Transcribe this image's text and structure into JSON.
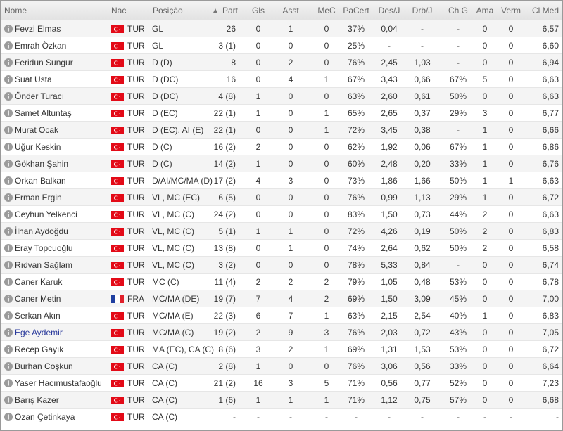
{
  "table": {
    "header": [
      "Nome",
      "Nac",
      "Posição",
      "Part",
      "Gls",
      "Asst",
      "MeC",
      "PaCert",
      "Des/J",
      "Drb/J",
      "Ch G",
      "Ama",
      "Verm",
      "Cl Med"
    ],
    "rows": [
      [
        "Fevzi Elmas",
        "TUR",
        "GL",
        "26",
        "0",
        "1",
        "0",
        "37%",
        "0,04",
        "-",
        "-",
        "0",
        "0",
        "6,57"
      ],
      [
        "Emrah Özkan",
        "TUR",
        "GL",
        "3 (1)",
        "0",
        "0",
        "0",
        "25%",
        "-",
        "-",
        "-",
        "0",
        "0",
        "6,60"
      ],
      [
        "Feridun Sungur",
        "TUR",
        "D (D)",
        "8",
        "0",
        "2",
        "0",
        "76%",
        "2,45",
        "1,03",
        "-",
        "0",
        "0",
        "6,94"
      ],
      [
        "Suat Usta",
        "TUR",
        "D (DC)",
        "16",
        "0",
        "4",
        "1",
        "67%",
        "3,43",
        "0,66",
        "67%",
        "5",
        "0",
        "6,63"
      ],
      [
        "Önder Turacı",
        "TUR",
        "D (DC)",
        "4 (8)",
        "1",
        "0",
        "0",
        "63%",
        "2,60",
        "0,61",
        "50%",
        "0",
        "0",
        "6,63"
      ],
      [
        "Samet Altuntaş",
        "TUR",
        "D (EC)",
        "22 (1)",
        "1",
        "0",
        "1",
        "65%",
        "2,65",
        "0,37",
        "29%",
        "3",
        "0",
        "6,77"
      ],
      [
        "Murat Ocak",
        "TUR",
        "D (EC), AI (E)",
        "22 (1)",
        "0",
        "0",
        "1",
        "72%",
        "3,45",
        "0,38",
        "-",
        "1",
        "0",
        "6,66"
      ],
      [
        "Uğur Keskin",
        "TUR",
        "D (C)",
        "16 (2)",
        "2",
        "0",
        "0",
        "62%",
        "1,92",
        "0,06",
        "67%",
        "1",
        "0",
        "6,86"
      ],
      [
        "Gökhan Şahin",
        "TUR",
        "D (C)",
        "14 (2)",
        "1",
        "0",
        "0",
        "60%",
        "2,48",
        "0,20",
        "33%",
        "1",
        "0",
        "6,76"
      ],
      [
        "Orkan Balkan",
        "TUR",
        "D/AI/MC/MA (D)",
        "17 (2)",
        "4",
        "3",
        "0",
        "73%",
        "1,86",
        "1,66",
        "50%",
        "1",
        "1",
        "6,63"
      ],
      [
        "Erman Ergin",
        "TUR",
        "VL, MC (EC)",
        "6 (5)",
        "0",
        "0",
        "0",
        "76%",
        "0,99",
        "1,13",
        "29%",
        "1",
        "0",
        "6,72"
      ],
      [
        "Ceyhun Yelkenci",
        "TUR",
        "VL, MC (C)",
        "24 (2)",
        "0",
        "0",
        "0",
        "83%",
        "1,50",
        "0,73",
        "44%",
        "2",
        "0",
        "6,63"
      ],
      [
        "İlhan Aydoğdu",
        "TUR",
        "VL, MC (C)",
        "5 (1)",
        "1",
        "1",
        "0",
        "72%",
        "4,26",
        "0,19",
        "50%",
        "2",
        "0",
        "6,83"
      ],
      [
        "Eray Topcuoğlu",
        "TUR",
        "VL, MC (C)",
        "13 (8)",
        "0",
        "1",
        "0",
        "74%",
        "2,64",
        "0,62",
        "50%",
        "2",
        "0",
        "6,58"
      ],
      [
        "Rıdvan Sağlam",
        "TUR",
        "VL, MC (C)",
        "3 (2)",
        "0",
        "0",
        "0",
        "78%",
        "5,33",
        "0,84",
        "-",
        "0",
        "0",
        "6,74"
      ],
      [
        "Caner Karuk",
        "TUR",
        "MC (C)",
        "11 (4)",
        "2",
        "2",
        "2",
        "79%",
        "1,05",
        "0,48",
        "53%",
        "0",
        "0",
        "6,78"
      ],
      [
        "Caner Metin",
        "FRA",
        "MC/MA (DE)",
        "19 (7)",
        "7",
        "4",
        "2",
        "69%",
        "1,50",
        "3,09",
        "45%",
        "0",
        "0",
        "7,00"
      ],
      [
        "Serkan Akın",
        "TUR",
        "MC/MA (E)",
        "22 (3)",
        "6",
        "7",
        "1",
        "63%",
        "2,15",
        "2,54",
        "40%",
        "1",
        "0",
        "6,83"
      ],
      [
        "Ege Aydemir",
        "TUR",
        "MC/MA (C)",
        "19 (2)",
        "2",
        "9",
        "3",
        "76%",
        "2,03",
        "0,72",
        "43%",
        "0",
        "0",
        "7,05"
      ],
      [
        "Recep Gayık",
        "TUR",
        "MA (EC), CA (C)",
        "8 (6)",
        "3",
        "2",
        "1",
        "69%",
        "1,31",
        "1,53",
        "53%",
        "0",
        "0",
        "6,72"
      ],
      [
        "Burhan Coşkun",
        "TUR",
        "CA (C)",
        "2 (8)",
        "1",
        "0",
        "0",
        "76%",
        "3,06",
        "0,56",
        "33%",
        "0",
        "0",
        "6,64"
      ],
      [
        "Yaser Hacımustafaoğlu",
        "TUR",
        "CA (C)",
        "21 (2)",
        "16",
        "3",
        "5",
        "71%",
        "0,56",
        "0,77",
        "52%",
        "0",
        "0",
        "7,23"
      ],
      [
        "Barış Kazer",
        "TUR",
        "CA (C)",
        "1 (6)",
        "1",
        "1",
        "1",
        "71%",
        "1,12",
        "0,75",
        "57%",
        "0",
        "0",
        "6,68"
      ],
      [
        "Ozan Çetinkaya",
        "TUR",
        "CA (C)",
        "-",
        "-",
        "-",
        "-",
        "-",
        "-",
        "-",
        "-",
        "-",
        "-",
        "-"
      ]
    ]
  }
}
